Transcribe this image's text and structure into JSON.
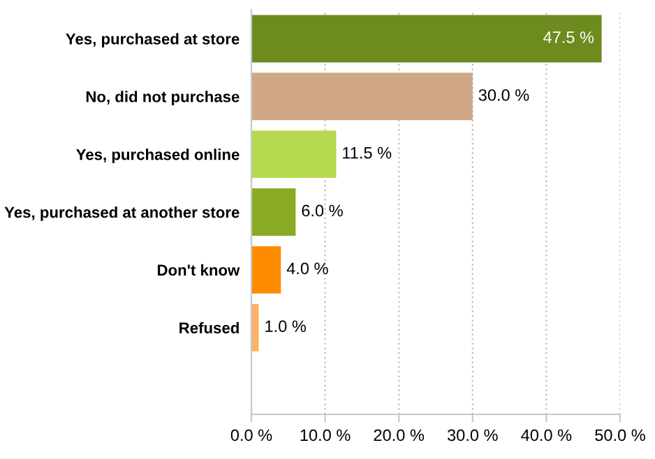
{
  "chart_data": {
    "type": "bar",
    "orientation": "horizontal",
    "categories": [
      "Yes, purchased at store",
      "No, did not purchase",
      "Yes, purchased online",
      "Yes, purchased at another store",
      "Don't know",
      "Refused",
      null
    ],
    "values": [
      47.5,
      30.0,
      11.5,
      6.0,
      4.0,
      1.0,
      null
    ],
    "colors": [
      "#6e8b1f",
      "#d0a886",
      "#b5da50",
      "#8aab23",
      "#ff8c00",
      "#ffb266",
      null
    ],
    "value_labels": [
      "47.5 %",
      "30.0 %",
      "11.5 %",
      "6.0 %",
      "4.0 %",
      "1.0 %",
      null
    ],
    "xlim": [
      0,
      50
    ],
    "xticks": [
      {
        "value": 0,
        "label": "0.0 %"
      },
      {
        "value": 10,
        "label": "10.0 %"
      },
      {
        "value": 20,
        "label": "20.0 %"
      },
      {
        "value": 30,
        "label": "30.0 %"
      },
      {
        "value": 40,
        "label": "40.0 %"
      },
      {
        "value": 50,
        "label": "50.0 %"
      }
    ],
    "grid": "x",
    "legend": false
  }
}
